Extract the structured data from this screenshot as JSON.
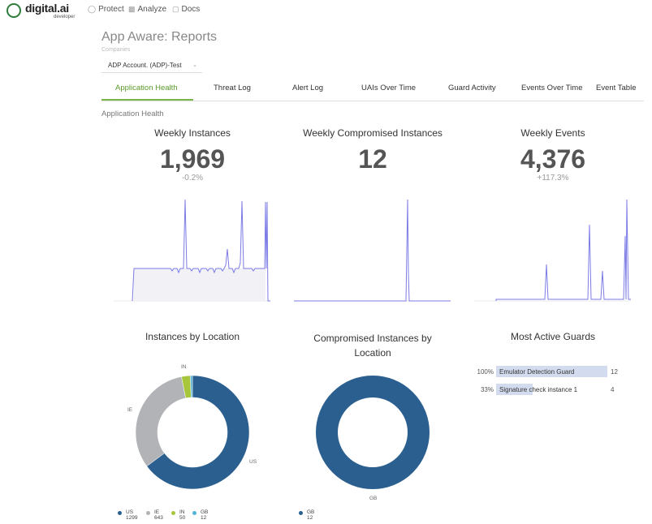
{
  "brand": {
    "name": "digital.ai",
    "sub": "developer"
  },
  "nav": [
    {
      "label": "Protect",
      "icon": "shield-icon"
    },
    {
      "label": "Analyze",
      "icon": "bar-chart-icon"
    },
    {
      "label": "Docs",
      "icon": "document-icon"
    }
  ],
  "page": {
    "title": "App Aware: Reports",
    "companies_label": "Companies",
    "company_selected": "ADP Account. (ADP)-Test",
    "section_label": "Application Health"
  },
  "tabs": [
    "Application Health",
    "Threat Log",
    "Alert Log",
    "UAIs Over Time",
    "Guard Activity",
    "Events Over Time",
    "Event Table"
  ],
  "kpis": [
    {
      "title": "Weekly Instances",
      "value": "1,969",
      "delta": "-0.2%"
    },
    {
      "title": "Weekly Compromised Instances",
      "value": "12",
      "delta": ""
    },
    {
      "title": "Weekly Events",
      "value": "4,376",
      "delta": "+117.3%"
    }
  ],
  "colors": {
    "accent": "#7ab648",
    "line": "#7b7be6",
    "us": "#2a5f8f",
    "ie": "#b1b3b6",
    "in": "#a7c63c",
    "gb": "#56b4d8"
  },
  "sparklines": {
    "weekly_instances": [
      0,
      0,
      0,
      0,
      0,
      0,
      0,
      0,
      0,
      0,
      0,
      0,
      0,
      0,
      0,
      0,
      0,
      0,
      0,
      0,
      0,
      0,
      0,
      0,
      0,
      0,
      0,
      0,
      0,
      0,
      0,
      0,
      0,
      0,
      0,
      0,
      0,
      0,
      0,
      0,
      0,
      0,
      0,
      0,
      0,
      0,
      0,
      0,
      0,
      0,
      0,
      0,
      0,
      0,
      0,
      0,
      0,
      0,
      0,
      0,
      0,
      0,
      0,
      0,
      0,
      0,
      0,
      0,
      0,
      0,
      0,
      0,
      0,
      0,
      0,
      0,
      0,
      0,
      0,
      0,
      0,
      0,
      0,
      0,
      0,
      0,
      0,
      0,
      0,
      0,
      0,
      0,
      0,
      0,
      0,
      0,
      0,
      0,
      0,
      0,
      0,
      0,
      0,
      0,
      0,
      0
    ],
    "weekly_compromised": [],
    "weekly_events": []
  },
  "instances_by_location": {
    "title": "Instances by Location",
    "slices": [
      {
        "name": "US",
        "value": 1299
      },
      {
        "name": "IE",
        "value": 643
      },
      {
        "name": "IN",
        "value": 50
      },
      {
        "name": "GB",
        "value": 12
      }
    ],
    "legend": [
      {
        "name": "US",
        "value": "1299"
      },
      {
        "name": "IE",
        "value": "643"
      },
      {
        "name": "IN",
        "value": "50"
      },
      {
        "name": "GB",
        "value": "12"
      }
    ]
  },
  "compromised_by_location": {
    "title": "Compromised Instances by Location",
    "slices": [
      {
        "name": "GB",
        "value": 12
      }
    ],
    "legend": [
      {
        "name": "GB",
        "value": "12"
      }
    ]
  },
  "most_active_guards": {
    "title": "Most Active Guards",
    "rows": [
      {
        "pct": "100%",
        "name": "Emulator Detection Guard",
        "count": "12",
        "fraction": 1.0
      },
      {
        "pct": "33%",
        "name": "Signature check instance 1",
        "count": "4",
        "fraction": 0.33
      }
    ]
  }
}
